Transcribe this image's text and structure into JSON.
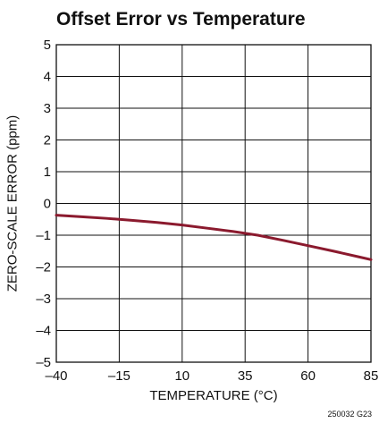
{
  "chart_data": {
    "type": "line",
    "title": "Offset Error vs Temperature",
    "xlabel": "TEMPERATURE (°C)",
    "ylabel": "ZERO-SCALE ERROR (ppm)",
    "xlim": [
      -40,
      85
    ],
    "ylim": [
      -5,
      5
    ],
    "x_ticks": [
      -40,
      -15,
      10,
      35,
      60,
      85
    ],
    "x_tick_labels": [
      "–40",
      "–15",
      "10",
      "35",
      "60",
      "85"
    ],
    "y_ticks": [
      5,
      4,
      3,
      2,
      1,
      0,
      -1,
      -2,
      -3,
      -4,
      -5
    ],
    "y_tick_labels": [
      "5",
      "4",
      "3",
      "2",
      "1",
      "0",
      "–1",
      "–2",
      "–3",
      "–4",
      "–5"
    ],
    "grid": true,
    "series": [
      {
        "color": "#8b1a2e",
        "x": [
          -40,
          -30,
          -20,
          -15,
          -10,
          0,
          10,
          20,
          30,
          35,
          40,
          50,
          60,
          70,
          80,
          85
        ],
        "y": [
          -0.37,
          -0.42,
          -0.47,
          -0.5,
          -0.53,
          -0.6,
          -0.68,
          -0.78,
          -0.88,
          -0.94,
          -1.0,
          -1.16,
          -1.33,
          -1.5,
          -1.68,
          -1.77
        ]
      }
    ],
    "annotation": "250032 G23"
  }
}
